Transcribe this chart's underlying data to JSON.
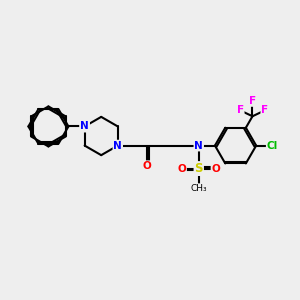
{
  "background_color": "#eeeeee",
  "bond_color": "#000000",
  "atom_colors": {
    "N": "#0000ff",
    "O": "#ff0000",
    "S": "#cccc00",
    "F": "#ff00ff",
    "Cl": "#00bb00",
    "C": "#000000"
  }
}
